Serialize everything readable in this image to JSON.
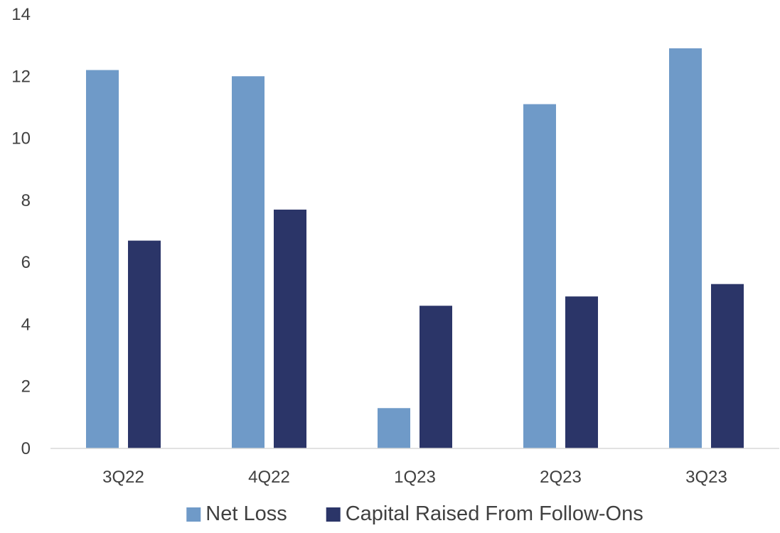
{
  "chart_data": {
    "type": "bar",
    "categories": [
      "3Q22",
      "4Q22",
      "1Q23",
      "2Q23",
      "3Q23"
    ],
    "series": [
      {
        "name": "Net Loss",
        "values": [
          12.2,
          12.0,
          1.3,
          11.1,
          12.9
        ],
        "color": "#6f9ac8"
      },
      {
        "name": "Capital Raised From Follow-Ons",
        "values": [
          6.7,
          7.7,
          4.6,
          4.9,
          5.3
        ],
        "color": "#2b3568"
      }
    ],
    "ylim": [
      0,
      14
    ],
    "yticks": [
      0,
      2,
      4,
      6,
      8,
      10,
      12,
      14
    ],
    "grid": false,
    "legend_position": "bottom",
    "title": "",
    "xlabel": "",
    "ylabel": ""
  }
}
